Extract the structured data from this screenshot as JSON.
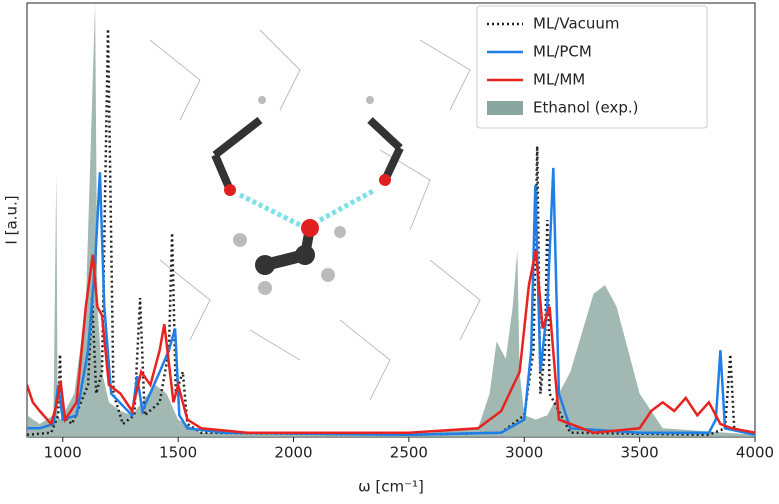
{
  "chart_data": {
    "type": "line",
    "xlabel": "ω [cm⁻¹]",
    "ylabel": "I [a.u.]",
    "xlim": [
      845,
      4000
    ],
    "ylim": [
      0,
      1
    ],
    "xticks": [
      1000,
      1500,
      2000,
      2500,
      3000,
      3500,
      4000
    ],
    "legend": "upper right",
    "series": [
      {
        "name": "ML/Vacuum",
        "color": "#222222",
        "style": "dotted",
        "x": [
          845,
          950,
          980,
          988,
          996,
          1040,
          1110,
          1127,
          1145,
          1170,
          1196,
          1220,
          1260,
          1310,
          1335,
          1355,
          1420,
          1460,
          1474,
          1490,
          1520,
          1540,
          1600,
          2500,
          2900,
          3000,
          3040,
          3056,
          3070,
          3090,
          3100,
          3110,
          3200,
          3800,
          3870,
          3893,
          3910,
          4000
        ],
        "values": [
          0.005,
          0.01,
          0.05,
          0.19,
          0.05,
          0.03,
          0.12,
          0.32,
          0.1,
          0.15,
          0.94,
          0.1,
          0.03,
          0.05,
          0.32,
          0.05,
          0.08,
          0.2,
          0.47,
          0.1,
          0.15,
          0.03,
          0.01,
          0.005,
          0.01,
          0.05,
          0.2,
          0.67,
          0.1,
          0.2,
          0.5,
          0.1,
          0.01,
          0.005,
          0.02,
          0.19,
          0.02,
          0.005
        ]
      },
      {
        "name": "ML/PCM",
        "color": "#1f7fe6",
        "style": "solid",
        "x": [
          845,
          900,
          960,
          980,
          1000,
          1060,
          1110,
          1140,
          1161,
          1180,
          1210,
          1300,
          1322,
          1345,
          1420,
          1460,
          1487,
          1505,
          1540,
          1700,
          2500,
          2900,
          3000,
          3030,
          3048,
          3070,
          3100,
          3126,
          3150,
          3200,
          3500,
          3800,
          3830,
          3850,
          3870,
          4000
        ],
        "values": [
          0.02,
          0.02,
          0.03,
          0.12,
          0.04,
          0.05,
          0.2,
          0.4,
          0.61,
          0.3,
          0.1,
          0.05,
          0.14,
          0.06,
          0.15,
          0.2,
          0.25,
          0.05,
          0.02,
          0.01,
          0.005,
          0.01,
          0.04,
          0.2,
          0.58,
          0.15,
          0.3,
          0.62,
          0.1,
          0.02,
          0.01,
          0.01,
          0.04,
          0.2,
          0.02,
          0.005
        ]
      },
      {
        "name": "ML/MM",
        "color": "#e8231f",
        "style": "solid",
        "x": [
          845,
          870,
          900,
          950,
          975,
          990,
          1010,
          1060,
          1100,
          1130,
          1150,
          1170,
          1200,
          1250,
          1300,
          1340,
          1380,
          1420,
          1440,
          1480,
          1500,
          1540,
          1600,
          1800,
          2500,
          2800,
          2900,
          2980,
          3020,
          3050,
          3080,
          3110,
          3150,
          3300,
          3500,
          3550,
          3600,
          3650,
          3700,
          3750,
          3800,
          3850,
          3900,
          4000
        ],
        "values": [
          0.12,
          0.08,
          0.06,
          0.03,
          0.08,
          0.13,
          0.04,
          0.08,
          0.3,
          0.42,
          0.3,
          0.28,
          0.12,
          0.1,
          0.06,
          0.15,
          0.12,
          0.2,
          0.26,
          0.08,
          0.12,
          0.04,
          0.02,
          0.01,
          0.01,
          0.02,
          0.06,
          0.15,
          0.35,
          0.43,
          0.25,
          0.3,
          0.04,
          0.01,
          0.02,
          0.06,
          0.08,
          0.06,
          0.09,
          0.05,
          0.08,
          0.03,
          0.02,
          0.01
        ]
      },
      {
        "name": "Ethanol (exp.)",
        "color": "#8aa6a0",
        "style": "area",
        "x": [
          845,
          900,
          960,
          972,
          978,
          990,
          1050,
          1100,
          1140,
          1150,
          1170,
          1200,
          1250,
          1300,
          1400,
          1450,
          1500,
          1600,
          2500,
          2800,
          2850,
          2880,
          2920,
          2950,
          2970,
          2980,
          3000,
          3050,
          3100,
          3200,
          3300,
          3350,
          3400,
          3500,
          3600,
          4000
        ],
        "values": [
          0.05,
          0.03,
          0.05,
          0.61,
          0.05,
          0.04,
          0.1,
          0.3,
          1.0,
          0.3,
          0.15,
          0.08,
          0.06,
          0.05,
          0.12,
          0.1,
          0.04,
          0.01,
          0.005,
          0.02,
          0.1,
          0.22,
          0.18,
          0.3,
          0.43,
          0.15,
          0.05,
          0.04,
          0.05,
          0.15,
          0.33,
          0.35,
          0.3,
          0.1,
          0.02,
          0.005
        ]
      }
    ]
  }
}
